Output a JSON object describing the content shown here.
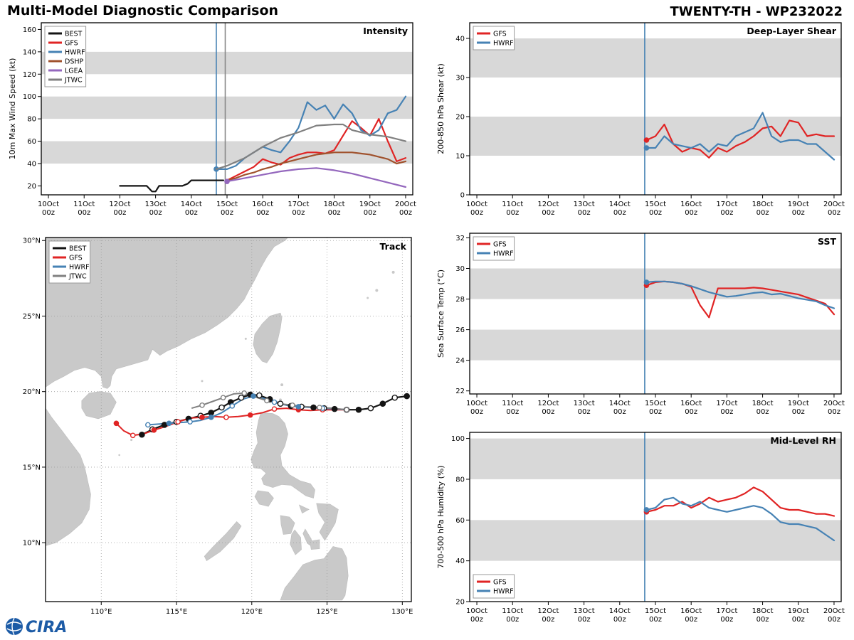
{
  "header": {
    "title": "Multi-Model Diagnostic Comparison",
    "storm_id": "TWENTY-TH - WP232022"
  },
  "logo": {
    "text": "CIRA"
  },
  "colors": {
    "band": "#d8d8d8",
    "frame": "#000000",
    "land": "#c9c9c9",
    "grid": "#9a9a9a",
    "init_line": "#4682b4",
    "init_line2": "#888888",
    "logo_blue": "#1c5ba6"
  },
  "x_axis": {
    "ticks": [
      {
        "day": 10,
        "l1": "10Oct",
        "l2": "00z"
      },
      {
        "day": 11,
        "l1": "11Oct",
        "l2": "00z"
      },
      {
        "day": 12,
        "l1": "12Oct",
        "l2": "00z"
      },
      {
        "day": 13,
        "l1": "13Oct",
        "l2": "00z"
      },
      {
        "day": 14,
        "l1": "14Oct",
        "l2": "00z"
      },
      {
        "day": 15,
        "l1": "15Oct",
        "l2": "00z"
      },
      {
        "day": 16,
        "l1": "16Oct",
        "l2": "00z"
      },
      {
        "day": 17,
        "l1": "17Oct",
        "l2": "00z"
      },
      {
        "day": 18,
        "l1": "18Oct",
        "l2": "00z"
      },
      {
        "day": 19,
        "l1": "19Oct",
        "l2": "00z"
      },
      {
        "day": 20,
        "l1": "20Oct",
        "l2": "00z"
      }
    ]
  },
  "chart_data": [
    {
      "id": "intensity",
      "type": "line",
      "title": "Intensity",
      "ylabel": "10m Max Wind Speed (kt)",
      "ylim": [
        12,
        166
      ],
      "yticks": [
        20,
        40,
        60,
        80,
        100,
        120,
        140,
        160
      ],
      "xlim": [
        9.8,
        20.2
      ],
      "bands": [
        [
          40,
          60
        ],
        [
          80,
          100
        ],
        [
          120,
          140
        ]
      ],
      "vlines": [
        {
          "x": 14.7,
          "color": "#4682b4"
        },
        {
          "x": 14.95,
          "color": "#888888"
        }
      ],
      "legend": {
        "pos": "top-left"
      },
      "series": [
        {
          "name": "BEST",
          "color": "#141414",
          "width": 2.2,
          "x": [
            12.0,
            12.5,
            12.75,
            12.9,
            13.0,
            13.1,
            13.5,
            13.75,
            13.9,
            14.0,
            14.5,
            14.7,
            14.9
          ],
          "y": [
            20,
            20,
            20,
            15,
            15,
            20,
            20,
            20,
            22,
            25,
            25,
            25,
            25
          ]
        },
        {
          "name": "GFS",
          "color": "#e02424",
          "width": 2.2,
          "x": [
            15.0,
            15.25,
            15.5,
            15.75,
            16.0,
            16.25,
            16.5,
            16.75,
            17.0,
            17.25,
            17.5,
            17.75,
            18.0,
            18.25,
            18.5,
            18.75,
            19.0,
            19.25,
            19.5,
            19.75,
            20.0
          ],
          "y": [
            25,
            29,
            33,
            37,
            44,
            41,
            39,
            45,
            48,
            50,
            50,
            49,
            52,
            65,
            78,
            72,
            65,
            80,
            60,
            42,
            45
          ]
        },
        {
          "name": "HWRF",
          "color": "#4682b4",
          "width": 2.2,
          "start_dot": true,
          "x": [
            14.7,
            15.0,
            15.25,
            15.5,
            15.75,
            16.0,
            16.25,
            16.5,
            16.75,
            17.0,
            17.25,
            17.5,
            17.75,
            18.0,
            18.25,
            18.5,
            18.75,
            19.0,
            19.25,
            19.5,
            19.75,
            20.0
          ],
          "y": [
            35,
            35,
            38,
            45,
            50,
            55,
            52,
            50,
            60,
            72,
            95,
            88,
            92,
            80,
            93,
            85,
            70,
            65,
            70,
            85,
            88,
            100
          ]
        },
        {
          "name": "DSHP",
          "color": "#a0522d",
          "width": 2.2,
          "x": [
            15.0,
            15.25,
            15.5,
            15.75,
            16.0,
            16.25,
            16.5,
            16.75,
            17.0,
            17.25,
            17.5,
            17.75,
            18.0,
            18.25,
            18.5,
            18.75,
            19.0,
            19.25,
            19.5,
            19.75,
            20.0
          ],
          "y": [
            25,
            27,
            30,
            32,
            35,
            37,
            40,
            42,
            44,
            46,
            48,
            49,
            50,
            50,
            50,
            49,
            48,
            46,
            44,
            40,
            42
          ]
        },
        {
          "name": "LGEA",
          "color": "#9467bd",
          "width": 2.2,
          "start_dot": true,
          "x": [
            15.0,
            15.5,
            16.0,
            16.5,
            17.0,
            17.5,
            18.0,
            18.5,
            19.0,
            19.5,
            20.0
          ],
          "y": [
            24,
            27,
            30,
            33,
            35,
            36,
            34,
            31,
            27,
            23,
            19
          ]
        },
        {
          "name": "JTWC",
          "color": "#808080",
          "width": 2.2,
          "x": [
            14.7,
            15.0,
            15.5,
            16.0,
            16.5,
            17.0,
            17.5,
            18.0,
            18.25,
            18.5,
            19.0,
            19.5,
            20.0
          ],
          "y": [
            35,
            38,
            45,
            55,
            63,
            68,
            74,
            75,
            75,
            70,
            66,
            64,
            60
          ]
        }
      ]
    },
    {
      "id": "shear",
      "type": "line",
      "title": "Deep-Layer Shear",
      "ylabel": "200-850 hPa Shear (kt)",
      "ylim": [
        0,
        44
      ],
      "yticks": [
        0,
        10,
        20,
        30,
        40
      ],
      "xlim": [
        9.8,
        20.2
      ],
      "bands": [
        [
          10,
          20
        ],
        [
          30,
          40
        ]
      ],
      "vlines": [
        {
          "x": 14.7,
          "color": "#4682b4"
        }
      ],
      "legend": {
        "pos": "top-left"
      },
      "series": [
        {
          "name": "GFS",
          "color": "#e02424",
          "width": 2.2,
          "start_dot": true,
          "x": [
            14.75,
            15.0,
            15.25,
            15.5,
            15.75,
            16.0,
            16.25,
            16.5,
            16.75,
            17.0,
            17.25,
            17.5,
            17.75,
            18.0,
            18.25,
            18.5,
            18.75,
            19.0,
            19.25,
            19.5,
            19.75,
            20.0
          ],
          "y": [
            14,
            15,
            18,
            13,
            11,
            12,
            11.5,
            9.5,
            12,
            11,
            12.5,
            13.5,
            15,
            17,
            17.5,
            15,
            19,
            18.5,
            15,
            15.5,
            15,
            15
          ]
        },
        {
          "name": "HWRF",
          "color": "#4682b4",
          "width": 2.2,
          "start_dot": true,
          "x": [
            14.75,
            15.0,
            15.25,
            15.5,
            15.75,
            16.0,
            16.25,
            16.5,
            16.75,
            17.0,
            17.25,
            17.5,
            17.75,
            18.0,
            18.25,
            18.5,
            18.75,
            19.0,
            19.25,
            19.5,
            19.75,
            20.0
          ],
          "y": [
            12,
            12,
            15,
            13,
            12.5,
            12,
            13,
            11,
            13,
            12.5,
            15,
            16,
            17,
            21,
            15,
            13.5,
            14,
            14,
            13,
            13,
            11,
            9
          ]
        }
      ]
    },
    {
      "id": "sst",
      "type": "line",
      "title": "SST",
      "ylabel": "Sea Surface Temp (°C)",
      "ylim": [
        21.8,
        32.3
      ],
      "yticks": [
        22,
        24,
        26,
        28,
        30,
        32
      ],
      "xlim": [
        9.8,
        20.2
      ],
      "bands": [
        [
          24,
          26
        ],
        [
          28,
          30
        ]
      ],
      "vlines": [
        {
          "x": 14.7,
          "color": "#4682b4"
        }
      ],
      "legend": {
        "pos": "top-left"
      },
      "series": [
        {
          "name": "GFS",
          "color": "#e02424",
          "width": 2.2,
          "start_dot": true,
          "x": [
            14.75,
            15.0,
            15.25,
            15.5,
            15.75,
            16.0,
            16.25,
            16.5,
            16.75,
            17.0,
            17.25,
            17.5,
            17.75,
            18.0,
            18.25,
            18.5,
            18.75,
            19.0,
            19.25,
            19.5,
            19.75,
            20.0
          ],
          "y": [
            28.9,
            29.1,
            29.15,
            29.1,
            29.0,
            28.8,
            27.6,
            26.8,
            28.7,
            28.7,
            28.7,
            28.7,
            28.75,
            28.7,
            28.6,
            28.5,
            28.4,
            28.3,
            28.1,
            27.9,
            27.7,
            27.0
          ]
        },
        {
          "name": "HWRF",
          "color": "#4682b4",
          "width": 2.2,
          "start_dot": true,
          "x": [
            14.75,
            15.0,
            15.25,
            15.5,
            15.75,
            16.0,
            16.25,
            16.5,
            16.75,
            17.0,
            17.25,
            17.5,
            17.75,
            18.0,
            18.25,
            18.5,
            18.75,
            19.0,
            19.25,
            19.5,
            19.75,
            20.0
          ],
          "y": [
            29.1,
            29.15,
            29.15,
            29.1,
            29.0,
            28.85,
            28.65,
            28.45,
            28.3,
            28.15,
            28.2,
            28.3,
            28.4,
            28.45,
            28.3,
            28.35,
            28.2,
            28.05,
            27.95,
            27.85,
            27.6,
            27.4
          ]
        }
      ]
    },
    {
      "id": "rh",
      "type": "line",
      "title": "Mid-Level RH",
      "ylabel": "700-500 hPa Humidity (%)",
      "ylim": [
        20,
        103
      ],
      "yticks": [
        20,
        40,
        60,
        80,
        100
      ],
      "xlim": [
        9.8,
        20.2
      ],
      "bands": [
        [
          40,
          60
        ],
        [
          80,
          100
        ]
      ],
      "vlines": [
        {
          "x": 14.7,
          "color": "#4682b4"
        }
      ],
      "legend": {
        "pos": "bottom-left"
      },
      "series": [
        {
          "name": "GFS",
          "color": "#e02424",
          "width": 2.2,
          "start_dot": true,
          "x": [
            14.75,
            15.0,
            15.25,
            15.5,
            15.75,
            16.0,
            16.25,
            16.5,
            16.75,
            17.0,
            17.25,
            17.5,
            17.75,
            18.0,
            18.25,
            18.5,
            18.75,
            19.0,
            19.25,
            19.5,
            19.75,
            20.0
          ],
          "y": [
            64,
            65,
            67,
            67,
            69,
            66,
            68,
            71,
            69,
            70,
            71,
            73,
            76,
            74,
            70,
            66,
            65,
            65,
            64,
            63,
            63,
            62
          ]
        },
        {
          "name": "HWRF",
          "color": "#4682b4",
          "width": 2.2,
          "start_dot": true,
          "x": [
            14.75,
            15.0,
            15.25,
            15.5,
            15.75,
            16.0,
            16.25,
            16.5,
            16.75,
            17.0,
            17.25,
            17.5,
            17.75,
            18.0,
            18.25,
            18.5,
            18.75,
            19.0,
            19.25,
            19.5,
            19.75,
            20.0
          ],
          "y": [
            65,
            66,
            70,
            71,
            68,
            67,
            69,
            66,
            65,
            64,
            65,
            66,
            67,
            66,
            63,
            59,
            58,
            58,
            57,
            56,
            53,
            50
          ]
        }
      ]
    },
    {
      "id": "track",
      "type": "track",
      "title": "Track",
      "xlim": [
        106.3,
        130.6
      ],
      "ylim": [
        6.1,
        30.2
      ],
      "xticks": [
        {
          "v": 110,
          "label": "110°E"
        },
        {
          "v": 115,
          "label": "115°E"
        },
        {
          "v": 120,
          "label": "120°E"
        },
        {
          "v": 125,
          "label": "125°E"
        },
        {
          "v": 130,
          "label": "130°E"
        }
      ],
      "yticks": [
        {
          "v": 10,
          "label": "10°N"
        },
        {
          "v": 15,
          "label": "15°N"
        },
        {
          "v": 20,
          "label": "20°N"
        },
        {
          "v": 25,
          "label": "25°N"
        },
        {
          "v": 30,
          "label": "30°N"
        }
      ],
      "legend": {
        "pos": "top-left"
      },
      "series": [
        {
          "name": "BEST",
          "color": "#141414",
          "width": 2.2,
          "marker_step": 1,
          "lon": [
            130.3,
            129.5,
            128.7,
            127.9,
            127.1,
            126.3,
            125.5,
            124.8,
            124.1,
            123.3,
            122.6,
            121.9,
            121.2,
            120.5,
            119.9,
            119.3,
            118.6,
            118.0,
            117.3,
            116.6,
            115.8,
            115.0,
            114.2,
            113.4,
            112.7
          ],
          "lat": [
            19.7,
            19.6,
            19.2,
            18.9,
            18.8,
            18.8,
            18.85,
            18.9,
            18.95,
            19.0,
            19.05,
            19.2,
            19.5,
            19.75,
            19.8,
            19.6,
            19.3,
            18.95,
            18.6,
            18.4,
            18.2,
            18.0,
            17.8,
            17.5,
            17.15
          ]
        },
        {
          "name": "GFS",
          "color": "#e02424",
          "width": 2,
          "marker_step": 2,
          "lon": [
            126.3,
            125.5,
            124.7,
            123.9,
            123.1,
            122.3,
            121.5,
            120.7,
            119.9,
            119.1,
            118.3,
            117.5,
            116.7,
            115.9,
            115.1,
            114.3,
            113.5,
            112.8,
            112.1,
            111.5,
            111.0
          ],
          "lat": [
            18.8,
            18.8,
            18.8,
            18.75,
            18.8,
            18.9,
            18.85,
            18.6,
            18.45,
            18.35,
            18.3,
            18.35,
            18.3,
            18.25,
            18.0,
            17.7,
            17.45,
            17.2,
            17.1,
            17.4,
            17.9
          ]
        },
        {
          "name": "HWRF",
          "color": "#4682b4",
          "width": 2,
          "marker_step": 2,
          "lon": [
            126.3,
            125.5,
            124.7,
            123.9,
            123.1,
            122.3,
            121.5,
            120.8,
            120.1,
            119.4,
            118.7,
            118.0,
            117.3,
            116.6,
            115.9,
            115.2,
            114.5,
            113.8,
            113.1
          ],
          "lat": [
            18.8,
            18.85,
            18.9,
            18.95,
            19.0,
            19.1,
            19.3,
            19.55,
            19.7,
            19.5,
            19.05,
            18.6,
            18.3,
            18.1,
            18.0,
            17.95,
            17.9,
            17.85,
            17.8
          ]
        },
        {
          "name": "JTWC",
          "color": "#808080",
          "width": 2,
          "marker_step": 2,
          "marker_open": true,
          "lon": [
            126.3,
            125.4,
            124.5,
            123.6,
            122.7,
            121.8,
            121.0,
            120.2,
            119.5,
            118.8,
            118.1,
            117.4,
            116.7,
            116.0
          ],
          "lat": [
            18.8,
            18.9,
            18.95,
            19.0,
            19.1,
            19.2,
            19.4,
            19.65,
            19.9,
            19.85,
            19.6,
            19.35,
            19.1,
            18.9
          ]
        }
      ]
    }
  ]
}
